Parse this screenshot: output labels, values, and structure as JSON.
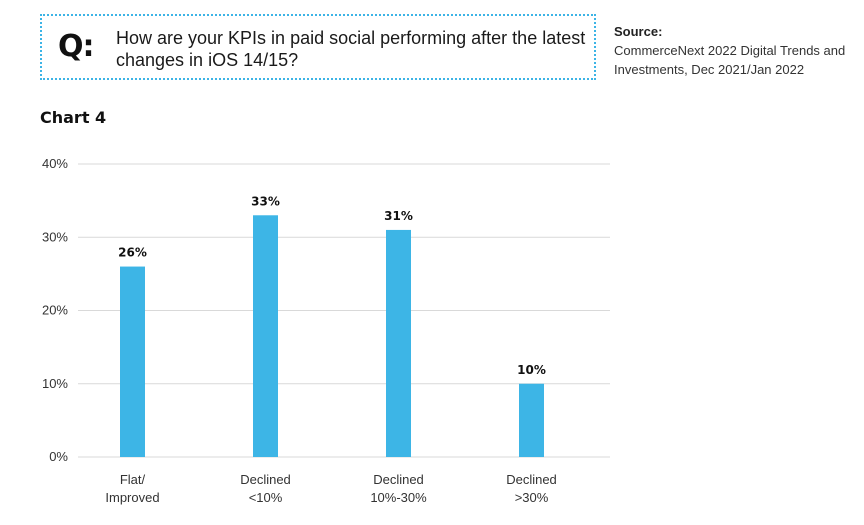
{
  "question": {
    "badge": "Q:",
    "text": "How are your KPIs in paid social performing after the latest changes in iOS 14/15?"
  },
  "source": {
    "label": "Source:",
    "text": "CommerceNext 2022 Digital Trends and Investments, Dec 2021/Jan 2022"
  },
  "colors": {
    "bar": "#3db5e6",
    "grid": "#d9d9d9",
    "accent_border": "#3cb4e6"
  },
  "chart_data": {
    "type": "bar",
    "title": "Chart 4",
    "categories": [
      [
        "Flat/",
        "Improved"
      ],
      [
        "Declined",
        "<10%"
      ],
      [
        "Declined",
        "10%-30%"
      ],
      [
        "Declined",
        ">30%"
      ]
    ],
    "values": [
      26,
      33,
      31,
      10
    ],
    "data_labels": [
      "26%",
      "33%",
      "31%",
      "10%"
    ],
    "ylim": [
      0,
      40
    ],
    "yticks": [
      0,
      10,
      20,
      30,
      40
    ],
    "ytick_labels": [
      "0%",
      "10%",
      "20%",
      "30%",
      "40%"
    ],
    "grid": true,
    "legend": "none",
    "xlabel": "",
    "ylabel": ""
  }
}
